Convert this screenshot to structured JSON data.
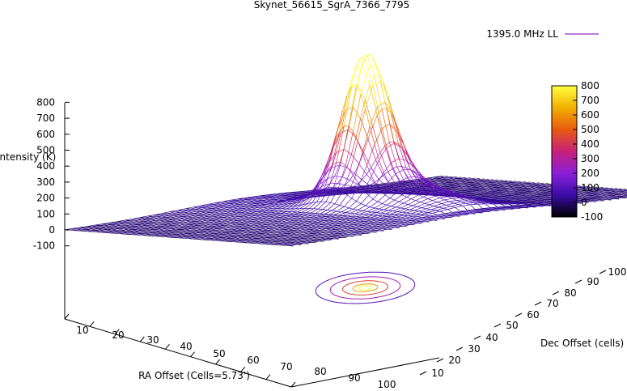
{
  "chart_data": {
    "type": "surface3d",
    "title": "Skynet_56615_SgrA_7366_7795",
    "legend": {
      "label": "1395.0 MHz LL",
      "placement": "top-right"
    },
    "xlabel": "RA Offset (Cells=5.73')",
    "ylabel": "Dec Offset (cells)",
    "zlabel": "Intensity (K)",
    "x_ticks": [
      "10",
      "20",
      "30",
      "40",
      "50",
      "60",
      "70",
      "80",
      "90",
      "100"
    ],
    "y_ticks": [
      "10",
      "20",
      "30",
      "40",
      "50",
      "60",
      "70",
      "80",
      "90",
      "100"
    ],
    "z_ticks": [
      "800",
      "700",
      "600",
      "500",
      "400",
      "300",
      "200",
      "100",
      "0",
      "-100"
    ],
    "colorbar_ticks": [
      "800",
      "700",
      "600",
      "500",
      "400",
      "300",
      "200",
      "100",
      "0",
      "-100"
    ],
    "xlim": [
      1,
      100
    ],
    "ylim": [
      1,
      100
    ],
    "zlim": [
      -100,
      800
    ],
    "peak": {
      "x": 48,
      "y": 52,
      "value": 810
    },
    "baseline": 0,
    "contours_on_base": true,
    "colormap": [
      "#000000",
      "#3a0ca8",
      "#8a1fd8",
      "#c8207a",
      "#e85a10",
      "#f2b000",
      "#ffff40"
    ]
  }
}
